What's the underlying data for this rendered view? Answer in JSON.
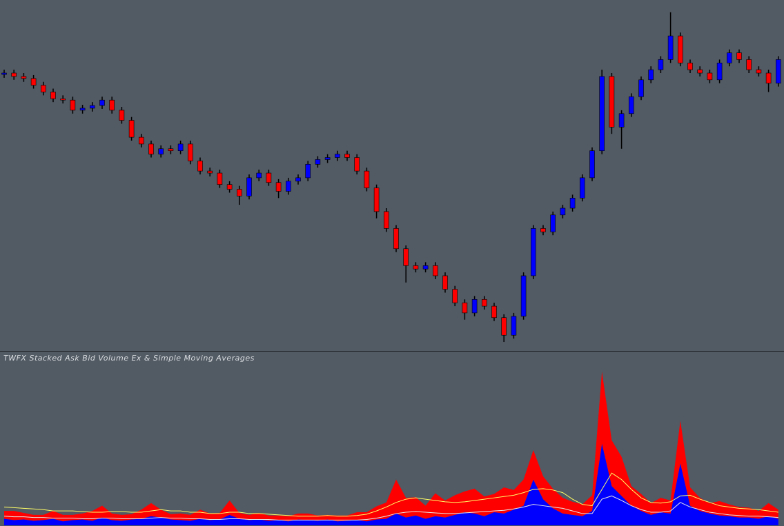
{
  "chart_data": [
    {
      "type": "candlestick",
      "up_color": "#0000ff",
      "down_color": "#ff0000",
      "wick_color": "#000000",
      "ylim": [
        0,
        500
      ],
      "open": [
        398,
        400,
        395,
        392,
        382,
        372,
        362,
        360,
        345,
        348,
        352,
        360,
        345,
        330,
        305,
        295,
        280,
        288,
        285,
        295,
        270,
        255,
        252,
        235,
        228,
        218,
        245,
        252,
        238,
        225,
        240,
        245,
        265,
        272,
        275,
        280,
        275,
        255,
        230,
        195,
        170,
        140,
        115,
        110,
        115,
        100,
        80,
        60,
        45,
        65,
        55,
        38,
        12,
        40,
        100,
        170,
        165,
        190,
        200,
        215,
        245,
        285,
        395,
        320,
        340,
        365,
        390,
        405,
        420,
        455,
        415,
        405,
        400,
        390,
        415,
        430,
        420,
        405,
        400,
        385
      ],
      "high": [
        405,
        405,
        400,
        397,
        387,
        377,
        367,
        365,
        353,
        357,
        365,
        365,
        350,
        335,
        310,
        300,
        293,
        293,
        300,
        300,
        275,
        260,
        257,
        240,
        233,
        250,
        257,
        257,
        243,
        245,
        250,
        270,
        277,
        280,
        285,
        285,
        280,
        260,
        235,
        200,
        175,
        145,
        120,
        120,
        120,
        105,
        85,
        65,
        70,
        70,
        60,
        43,
        45,
        105,
        175,
        175,
        195,
        205,
        220,
        250,
        290,
        405,
        400,
        345,
        370,
        395,
        410,
        425,
        490,
        460,
        420,
        410,
        405,
        420,
        435,
        435,
        425,
        410,
        405,
        425
      ],
      "low": [
        393,
        390,
        387,
        377,
        367,
        357,
        355,
        340,
        340,
        343,
        347,
        340,
        325,
        300,
        290,
        275,
        275,
        280,
        280,
        265,
        250,
        247,
        230,
        223,
        205,
        213,
        240,
        233,
        215,
        220,
        235,
        240,
        260,
        267,
        270,
        270,
        250,
        225,
        185,
        165,
        135,
        90,
        105,
        105,
        95,
        75,
        55,
        35,
        40,
        50,
        33,
        2,
        7,
        35,
        95,
        160,
        160,
        185,
        195,
        210,
        240,
        280,
        310,
        288,
        335,
        360,
        385,
        400,
        415,
        410,
        400,
        395,
        385,
        385,
        410,
        415,
        400,
        395,
        372,
        380
      ],
      "close": [
        400,
        395,
        392,
        382,
        372,
        362,
        360,
        345,
        348,
        352,
        360,
        345,
        330,
        305,
        295,
        280,
        288,
        285,
        295,
        270,
        255,
        252,
        235,
        228,
        218,
        245,
        252,
        238,
        225,
        240,
        245,
        265,
        272,
        275,
        280,
        275,
        255,
        230,
        195,
        170,
        140,
        115,
        110,
        115,
        100,
        80,
        60,
        45,
        65,
        55,
        38,
        12,
        40,
        100,
        170,
        165,
        190,
        200,
        215,
        245,
        285,
        395,
        320,
        340,
        365,
        390,
        405,
        420,
        455,
        415,
        405,
        400,
        390,
        415,
        430,
        420,
        405,
        400,
        385,
        420
      ]
    },
    {
      "type": "stacked_area",
      "title": "TWFX Stacked Ask Bid Volume Ex & Simple Moving Averages",
      "ylim": [
        0,
        250
      ],
      "series": [
        {
          "color": "#0000ff",
          "values": [
            10,
            8,
            9,
            7,
            8,
            10,
            6,
            8,
            9,
            7,
            12,
            8,
            7,
            9,
            10,
            14,
            12,
            9,
            8,
            7,
            10,
            8,
            9,
            16,
            10,
            8,
            9,
            7,
            8,
            6,
            9,
            8,
            7,
            9,
            6,
            7,
            8,
            6,
            9,
            10,
            18,
            12,
            15,
            10,
            14,
            12,
            16,
            20,
            18,
            14,
            20,
            18,
            24,
            30,
            70,
            40,
            26,
            18,
            16,
            14,
            22,
            125,
            60,
            45,
            30,
            22,
            16,
            20,
            18,
            95,
            30,
            22,
            18,
            15,
            14,
            12,
            12,
            10,
            14,
            10
          ]
        },
        {
          "color": "#ff0000",
          "values": [
            12,
            14,
            10,
            9,
            8,
            12,
            10,
            8,
            9,
            15,
            18,
            10,
            9,
            8,
            14,
            20,
            12,
            8,
            10,
            9,
            14,
            10,
            10,
            22,
            9,
            8,
            10,
            8,
            7,
            8,
            9,
            10,
            8,
            7,
            9,
            8,
            12,
            14,
            20,
            25,
            52,
            30,
            28,
            20,
            35,
            26,
            30,
            32,
            38,
            30,
            28,
            40,
            30,
            40,
            45,
            35,
            30,
            24,
            20,
            18,
            24,
            110,
            70,
            60,
            30,
            26,
            18,
            22,
            20,
            65,
            28,
            20,
            16,
            22,
            18,
            16,
            15,
            12,
            20,
            14
          ]
        }
      ],
      "lines": [
        {
          "color": "#ffff66",
          "values": [
            28,
            27,
            26,
            25,
            24,
            22,
            22,
            22,
            21,
            20,
            20,
            21,
            21,
            20,
            20,
            22,
            24,
            22,
            22,
            20,
            20,
            18,
            18,
            20,
            20,
            18,
            18,
            17,
            16,
            15,
            14,
            14,
            14,
            15,
            14,
            14,
            15,
            17,
            22,
            28,
            35,
            40,
            42,
            40,
            38,
            36,
            35,
            36,
            38,
            40,
            42,
            44,
            46,
            50,
            55,
            56,
            54,
            50,
            40,
            32,
            30,
            55,
            80,
            70,
            55,
            42,
            35,
            34,
            36,
            45,
            46,
            40,
            35,
            30,
            28,
            26,
            25,
            24,
            22,
            20
          ]
        },
        {
          "color": "#e8e8e8",
          "values": [
            14,
            13,
            13,
            12,
            12,
            11,
            11,
            11,
            10,
            10,
            11,
            11,
            10,
            10,
            10,
            11,
            12,
            11,
            11,
            10,
            10,
            9,
            9,
            10,
            10,
            9,
            9,
            9,
            8,
            8,
            8,
            8,
            8,
            8,
            8,
            8,
            8,
            9,
            11,
            14,
            18,
            20,
            21,
            20,
            19,
            18,
            18,
            19,
            20,
            21,
            22,
            23,
            25,
            28,
            32,
            30,
            28,
            26,
            22,
            18,
            18,
            40,
            45,
            38,
            30,
            24,
            20,
            20,
            22,
            35,
            28,
            24,
            20,
            18,
            16,
            15,
            14,
            14,
            13,
            12
          ]
        }
      ]
    }
  ]
}
